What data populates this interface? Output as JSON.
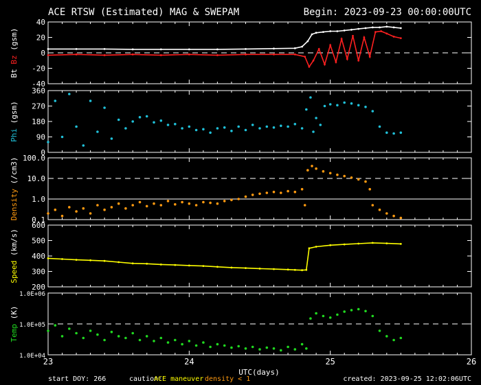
{
  "title": "ACE RTSW (Estimated) MAG & SWEPAM",
  "begin": "Begin: 2023-09-23 00:00:00UTC",
  "footer": {
    "start_doy": "start DOY: 266",
    "caution": "caution:",
    "maneuver": "ACE maneuver",
    "density_note": "density < 1",
    "xlabel": "UTC(days)",
    "created": "created: 2023-09-25 12:02:06UTC"
  },
  "colors": {
    "bt": "#ffffff",
    "bz": "#ff2020",
    "phi": "#20c0d8",
    "density": "#ff9a10",
    "speed": "#ffff00",
    "temp": "#20d820",
    "maneuver": "#ffff00",
    "density_note": "#ff9a10",
    "axis": "#ffffff"
  },
  "chart_data": [
    {
      "id": "mag",
      "type": "line",
      "ylabel_parts": [
        "Bt",
        "Bz",
        "(gsm)"
      ],
      "ylim": [
        -40,
        40
      ],
      "yticks": [
        -40,
        -20,
        0,
        20,
        40
      ],
      "ytick_labels": [
        "-40",
        "-20",
        "0",
        "20",
        "40"
      ],
      "dashed": [
        0
      ],
      "xlim": [
        23,
        26
      ],
      "series": [
        {
          "key": "bt",
          "x": [
            23.0,
            23.2,
            23.4,
            23.6,
            23.8,
            24.0,
            24.2,
            24.4,
            24.6,
            24.75,
            24.8,
            24.84,
            24.87,
            24.9,
            24.95,
            25.0,
            25.05,
            25.1,
            25.15,
            25.2,
            25.25,
            25.3,
            25.35,
            25.4,
            25.45,
            25.5
          ],
          "y": [
            5,
            5,
            5,
            4.5,
            4.5,
            4.5,
            4.5,
            5,
            5.5,
            6,
            8,
            15,
            24,
            26,
            27,
            28,
            28,
            29,
            30,
            31,
            32,
            33,
            33,
            34,
            33,
            32
          ]
        },
        {
          "key": "bz",
          "x": [
            23.0,
            23.2,
            23.4,
            23.6,
            23.8,
            24.0,
            24.2,
            24.4,
            24.6,
            24.75,
            24.82,
            24.85,
            24.88,
            24.92,
            24.96,
            25.0,
            25.04,
            25.08,
            25.12,
            25.16,
            25.2,
            25.24,
            25.28,
            25.32,
            25.36,
            25.4,
            25.45,
            25.5
          ],
          "y": [
            -3,
            -2,
            -3,
            -2,
            -3,
            -2,
            -3,
            -2,
            -2,
            -2,
            -5,
            -18,
            -10,
            5,
            -15,
            10,
            -12,
            18,
            -8,
            22,
            -10,
            20,
            -5,
            27,
            28,
            25,
            21,
            19
          ]
        }
      ]
    },
    {
      "id": "phi",
      "type": "scatter",
      "ylabel_parts": [
        "Phi",
        "(gsm)"
      ],
      "ylim": [
        0,
        360
      ],
      "yticks": [
        0,
        90,
        180,
        270,
        360
      ],
      "ytick_labels": [
        "0",
        "90",
        "180",
        "270",
        "360"
      ],
      "dashed": [],
      "xlim": [
        23,
        26
      ],
      "series": [
        {
          "key": "phi",
          "x": [
            23.0,
            23.05,
            23.1,
            23.15,
            23.2,
            23.25,
            23.3,
            23.35,
            23.4,
            23.45,
            23.5,
            23.55,
            23.6,
            23.65,
            23.7,
            23.75,
            23.8,
            23.85,
            23.9,
            23.95,
            24.0,
            24.05,
            24.1,
            24.15,
            24.2,
            24.25,
            24.3,
            24.35,
            24.4,
            24.45,
            24.5,
            24.55,
            24.6,
            24.65,
            24.7,
            24.75,
            24.8,
            24.83,
            24.86,
            24.88,
            24.9,
            24.93,
            24.96,
            25.0,
            25.05,
            25.1,
            25.15,
            25.2,
            25.25,
            25.3,
            25.35,
            25.4,
            25.45,
            25.5
          ],
          "y": [
            60,
            300,
            90,
            340,
            150,
            40,
            300,
            120,
            260,
            80,
            190,
            140,
            180,
            205,
            210,
            175,
            185,
            160,
            165,
            140,
            150,
            130,
            135,
            115,
            140,
            145,
            125,
            150,
            130,
            160,
            140,
            150,
            145,
            155,
            150,
            165,
            140,
            250,
            320,
            120,
            200,
            160,
            270,
            280,
            275,
            290,
            285,
            275,
            265,
            240,
            150,
            115,
            110,
            115
          ]
        }
      ]
    },
    {
      "id": "density",
      "type": "scatter",
      "ylabel_parts": [
        "Density",
        "(/cm3)"
      ],
      "yscale": "log",
      "ylim": [
        0.1,
        100
      ],
      "yticks": [
        0.1,
        1,
        10,
        100
      ],
      "ytick_labels": [
        "0.1",
        "1.0",
        "10.0",
        "100.0"
      ],
      "dashed": [
        10
      ],
      "solid": [
        1
      ],
      "xlim": [
        23,
        26
      ],
      "series": [
        {
          "key": "density",
          "x": [
            23.0,
            23.05,
            23.1,
            23.15,
            23.2,
            23.25,
            23.3,
            23.35,
            23.4,
            23.45,
            23.5,
            23.55,
            23.6,
            23.65,
            23.7,
            23.75,
            23.8,
            23.85,
            23.9,
            23.95,
            24.0,
            24.05,
            24.1,
            24.15,
            24.2,
            24.25,
            24.3,
            24.35,
            24.4,
            24.45,
            24.5,
            24.55,
            24.6,
            24.65,
            24.7,
            24.75,
            24.8,
            24.82,
            24.84,
            24.87,
            24.9,
            24.95,
            25.0,
            25.05,
            25.1,
            25.15,
            25.2,
            25.25,
            25.28,
            25.3,
            25.35,
            25.4,
            25.45,
            25.5
          ],
          "y": [
            0.2,
            0.3,
            0.15,
            0.4,
            0.25,
            0.35,
            0.2,
            0.5,
            0.3,
            0.4,
            0.6,
            0.35,
            0.5,
            0.7,
            0.45,
            0.6,
            0.5,
            0.8,
            0.55,
            0.7,
            0.6,
            0.5,
            0.7,
            0.65,
            0.6,
            0.8,
            0.9,
            1.0,
            1.3,
            1.6,
            1.8,
            2.0,
            2.2,
            2.0,
            2.4,
            2.2,
            3.0,
            0.5,
            25,
            40,
            30,
            22,
            18,
            15,
            13,
            11,
            9,
            7,
            3,
            0.5,
            0.3,
            0.2,
            0.15,
            0.12
          ]
        }
      ]
    },
    {
      "id": "speed",
      "type": "line",
      "ylabel_parts": [
        "Speed",
        "(km/s)"
      ],
      "ylim": [
        200,
        600
      ],
      "yticks": [
        200,
        300,
        400,
        500,
        600
      ],
      "ytick_labels": [
        "200",
        "300",
        "400",
        "500",
        "600"
      ],
      "dashed": [],
      "xlim": [
        23,
        26
      ],
      "series": [
        {
          "key": "speed",
          "x": [
            23.0,
            23.1,
            23.2,
            23.3,
            23.4,
            23.5,
            23.6,
            23.7,
            23.8,
            23.9,
            24.0,
            24.1,
            24.2,
            24.3,
            24.4,
            24.5,
            24.6,
            24.7,
            24.75,
            24.8,
            24.83,
            24.85,
            24.9,
            25.0,
            25.1,
            25.2,
            25.3,
            25.4,
            25.5
          ],
          "y": [
            385,
            380,
            375,
            372,
            368,
            360,
            352,
            350,
            345,
            342,
            338,
            335,
            330,
            325,
            322,
            318,
            315,
            312,
            310,
            308,
            310,
            450,
            460,
            470,
            475,
            480,
            485,
            482,
            478
          ]
        }
      ]
    },
    {
      "id": "temp",
      "type": "scatter",
      "ylabel_parts": [
        "Temp",
        "(K)"
      ],
      "yscale": "log",
      "ylim": [
        10000,
        1000000
      ],
      "yticks": [
        10000,
        100000,
        1000000
      ],
      "ytick_labels": [
        "1.0E+04",
        "1.0E+05",
        "1.0E+06"
      ],
      "dashed": [
        100000
      ],
      "xlim": [
        23,
        26
      ],
      "xticks": [
        23,
        24,
        25,
        26
      ],
      "xtick_labels": [
        "23",
        "24",
        "25",
        "26"
      ],
      "series": [
        {
          "key": "temp",
          "x": [
            23.0,
            23.05,
            23.1,
            23.15,
            23.2,
            23.25,
            23.3,
            23.35,
            23.4,
            23.45,
            23.5,
            23.55,
            23.6,
            23.65,
            23.7,
            23.75,
            23.8,
            23.85,
            23.9,
            23.95,
            24.0,
            24.05,
            24.1,
            24.15,
            24.2,
            24.25,
            24.3,
            24.35,
            24.4,
            24.45,
            24.5,
            24.55,
            24.6,
            24.65,
            24.7,
            24.75,
            24.8,
            24.83,
            24.86,
            24.9,
            24.95,
            25.0,
            25.05,
            25.1,
            25.15,
            25.2,
            25.25,
            25.3,
            25.35,
            25.4,
            25.45,
            25.5
          ],
          "y": [
            60000,
            90000,
            40000,
            70000,
            50000,
            35000,
            60000,
            45000,
            30000,
            55000,
            40000,
            35000,
            50000,
            30000,
            40000,
            28000,
            35000,
            25000,
            30000,
            22000,
            28000,
            20000,
            25000,
            18000,
            22000,
            20000,
            17000,
            19000,
            16000,
            18000,
            15000,
            17000,
            16000,
            14000,
            18000,
            15000,
            22000,
            16000,
            150000,
            220000,
            180000,
            160000,
            200000,
            250000,
            280000,
            300000,
            260000,
            180000,
            60000,
            40000,
            30000,
            35000
          ]
        }
      ]
    }
  ]
}
